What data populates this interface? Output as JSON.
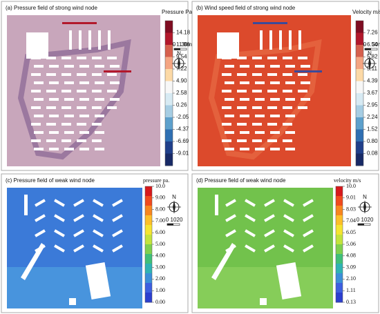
{
  "panels": [
    {
      "title": "(a) Pressure field of strong wind node",
      "colorbar_label": "Pressure Pa.",
      "ticks": [
        "14.18",
        "11.86",
        "9.54",
        "7.22",
        "4.90",
        "2.58",
        "0.26",
        "-2.05",
        "-4.37",
        "-6.69",
        "-9.01"
      ],
      "scale": [
        "0",
        "30m"
      ],
      "north": "N"
    },
    {
      "title": "(b) Wind speed field of strong wind node",
      "colorbar_label": "Velocity m/s",
      "ticks": [
        "7.26",
        "6.54",
        "5.82",
        "5.11",
        "4.39",
        "3.67",
        "2.95",
        "2.24",
        "1.52",
        "0.80",
        "0.08"
      ],
      "scale": [
        "0",
        "30m"
      ],
      "north": "N"
    },
    {
      "title": "(c) Pressure field of weak wind node",
      "colorbar_label": "pressure pa.",
      "ticks": [
        "10.0",
        "9.00",
        "8.00",
        "7.00",
        "6.00",
        "5.00",
        "4.00",
        "3.00",
        "2.00",
        "1.00",
        "0.00"
      ],
      "scale": [
        "0",
        "10",
        "20"
      ],
      "north": "N"
    },
    {
      "title": "(d) Pressure field of weak wind node",
      "colorbar_label": "velocity m/s",
      "ticks": [
        "10.0",
        "9.01",
        "8.03",
        "7.04",
        "6.05",
        "5.06",
        "4.08",
        "3.09",
        "2.10",
        "1.11",
        "0.13"
      ],
      "scale": [
        "0",
        "10",
        "20"
      ],
      "north": "N"
    }
  ]
}
